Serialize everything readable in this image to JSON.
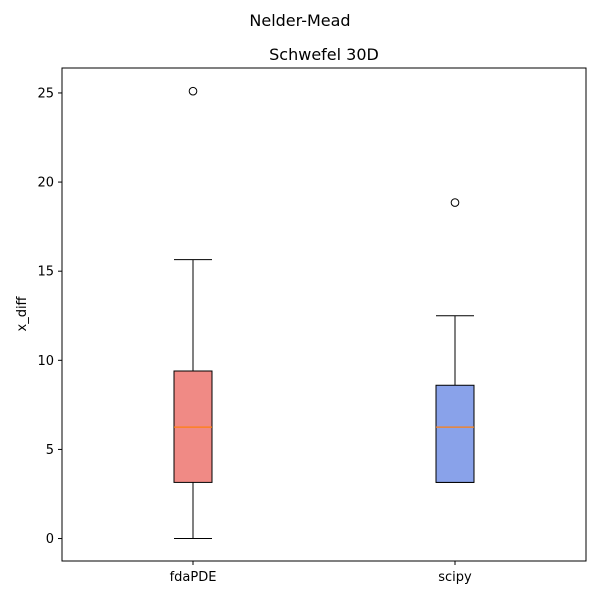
{
  "chart_data": {
    "type": "box",
    "suptitle": "Nelder-Mead",
    "title": "Schwefel 30D",
    "xlabel": "",
    "ylabel": "x_diff",
    "ylim": [
      -1.26,
      26.4
    ],
    "yticks": [
      0,
      5,
      10,
      15,
      20,
      25
    ],
    "grid": false,
    "categories": [
      "fdaPDE",
      "scipy"
    ],
    "boxes": [
      {
        "label": "fdaPDE",
        "whislo": 0.0,
        "q1": 3.15,
        "median": 6.25,
        "q3": 9.4,
        "whishi": 15.65,
        "fliers": [
          25.1
        ],
        "color": "#f08a85"
      },
      {
        "label": "scipy",
        "whislo": 3.15,
        "q1": 3.15,
        "median": 6.25,
        "q3": 8.6,
        "whishi": 12.5,
        "fliers": [
          18.85
        ],
        "color": "#89a2ea"
      }
    ],
    "median_color": "#ff7f0e"
  }
}
